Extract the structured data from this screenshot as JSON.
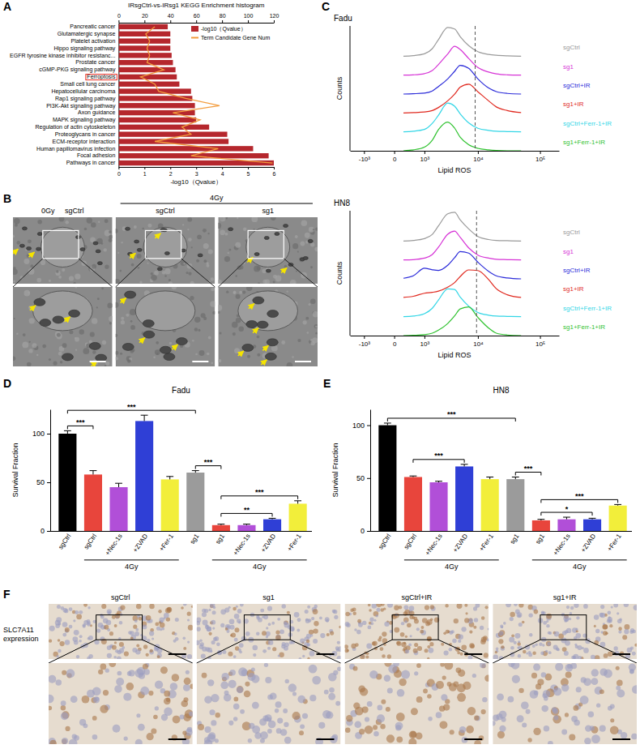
{
  "chart_data": [
    {
      "type": "bar",
      "panel": "A",
      "title": "IRsgCtrl-vs-IRsg1 KEGG Enrichment histogram",
      "orientation": "horizontal",
      "categories": [
        "Pancreatic cancer",
        "Glutamatergic synapse",
        "Platelet activation",
        "Hippo signaling pathway",
        "EGFR tyrosine kinase inhibitor resistanc...",
        "Prostate cancer",
        "cGMP-PKG signaling pathway",
        "Ferroptosis",
        "Small cell lung cancer",
        "Hepatocellular carcinoma",
        "Rap1 signaling pathway",
        "PI3K-Akt signaling pathway",
        "Axon guidance",
        "MAPK signaling pathway",
        "Regulation of actin cytoskeleton",
        "Proteoglycans in cancer",
        "ECM-receptor interaction",
        "Human papillomavirus infection",
        "Focal adhesion",
        "Pathways in cancer"
      ],
      "series": [
        {
          "name": "-log10（Qvalue）",
          "type": "bar",
          "color": "#b5272d",
          "values": [
            1.9,
            2.0,
            2.0,
            2.0,
            2.05,
            2.1,
            2.2,
            2.25,
            2.35,
            2.8,
            2.85,
            2.95,
            2.95,
            3.0,
            3.5,
            4.2,
            4.25,
            5.2,
            5.8,
            6.0
          ]
        },
        {
          "name": "Term Candidate Gene Num",
          "type": "line",
          "axis": "y2",
          "color": "#f39c3d",
          "values": [
            28,
            21,
            24,
            22,
            24,
            22,
            35,
            17,
            28,
            31,
            52,
            78,
            42,
            63,
            49,
            56,
            28,
            77,
            56,
            119
          ]
        }
      ],
      "ylabel": "-log10（Qvalue）",
      "ylim": [
        0,
        6
      ],
      "yticks": [
        0,
        1,
        2,
        3,
        4,
        5,
        6
      ],
      "y2lim": [
        0,
        120
      ],
      "y2ticks": [
        0,
        20,
        40,
        60,
        80,
        100,
        120
      ],
      "legend": "top right",
      "annotations": [
        {
          "type": "box",
          "category": "Ferroptosis",
          "color": "#e8281e"
        }
      ]
    },
    {
      "type": "line",
      "panel": "C",
      "title": "Fadu",
      "xlabel": "Lipid ROS",
      "ylabel": "Counts",
      "log": "x",
      "xlim": [
        -2000,
        200000
      ],
      "xticks": [
        {
          "value": -1000,
          "label": "-10³"
        },
        0,
        {
          "value": 1000,
          "label": "10³"
        },
        {
          "value": 10000,
          "label": "10⁴"
        },
        {
          "value": 100000,
          "label": "10⁵"
        }
      ],
      "ylim": [
        0,
        100
      ],
      "tick_labels": "x",
      "threshold": 9000,
      "x": [
        200,
        500,
        1000,
        1500,
        2000,
        3000,
        4000,
        5000,
        7000,
        10000,
        15000,
        20000,
        30000,
        50000
      ],
      "series": [
        {
          "name": "sgCtrl",
          "color": "#9a9a9a",
          "values": [
            0,
            2,
            8,
            25,
            55,
            95,
            90,
            65,
            35,
            15,
            6,
            3,
            1,
            0
          ]
        },
        {
          "name": "sg1",
          "color": "#d633d6",
          "values": [
            0,
            1,
            5,
            15,
            35,
            70,
            95,
            85,
            55,
            25,
            10,
            4,
            1,
            0
          ]
        },
        {
          "name": "sgCtrl+IR",
          "color": "#2b2bd9",
          "values": [
            0,
            1,
            3,
            10,
            25,
            50,
            75,
            95,
            85,
            50,
            20,
            8,
            2,
            0
          ]
        },
        {
          "name": "sg1+IR",
          "color": "#e0281e",
          "values": [
            0,
            1,
            3,
            8,
            18,
            40,
            62,
            85,
            95,
            70,
            40,
            20,
            8,
            1
          ]
        },
        {
          "name": "sgCtrl+Ferr-1+IR",
          "color": "#33d6e6",
          "values": [
            0,
            2,
            8,
            28,
            55,
            95,
            85,
            60,
            30,
            12,
            5,
            2,
            1,
            0
          ]
        },
        {
          "name": "sg1+Ferr-1+IR",
          "color": "#2fc22f",
          "values": [
            0,
            3,
            12,
            35,
            70,
            95,
            75,
            45,
            20,
            8,
            3,
            1,
            0,
            0
          ]
        }
      ]
    },
    {
      "type": "line",
      "title": "HN8",
      "xlabel": "Lipid ROS",
      "ylabel": "Counts",
      "log": "x",
      "xlim": [
        -2000,
        200000
      ],
      "xticks": [
        {
          "value": -1000,
          "label": "-10³"
        },
        0,
        {
          "value": 1000,
          "label": "10³"
        },
        {
          "value": 10000,
          "label": "10⁴"
        },
        {
          "value": 100000,
          "label": "10⁵"
        }
      ],
      "ylim": [
        0,
        100
      ],
      "tick_labels": "x",
      "threshold": 9500,
      "x": [
        200,
        500,
        1000,
        1500,
        2000,
        3000,
        4000,
        5000,
        7000,
        10000,
        15000,
        20000,
        30000,
        50000
      ],
      "series": [
        {
          "name": "sgCtrl",
          "color": "#9a9a9a",
          "values": [
            0,
            2,
            8,
            22,
            50,
            90,
            95,
            70,
            40,
            15,
            5,
            2,
            1,
            0
          ]
        },
        {
          "name": "sg1",
          "color": "#d633d6",
          "values": [
            0,
            1,
            6,
            18,
            42,
            85,
            95,
            75,
            40,
            16,
            6,
            2,
            1,
            0
          ]
        },
        {
          "name": "sgCtrl+IR",
          "color": "#2b2bd9",
          "values": [
            2,
            10,
            35,
            30,
            28,
            45,
            70,
            90,
            85,
            55,
            25,
            10,
            3,
            0
          ]
        },
        {
          "name": "sg1+IR",
          "color": "#e0281e",
          "values": [
            1,
            5,
            15,
            18,
            22,
            35,
            50,
            70,
            92,
            90,
            60,
            30,
            10,
            1
          ]
        },
        {
          "name": "sgCtrl+Ferr-1+IR",
          "color": "#33d6e6",
          "values": [
            0,
            2,
            10,
            28,
            55,
            92,
            90,
            65,
            35,
            14,
            5,
            2,
            1,
            0
          ]
        },
        {
          "name": "sg1+Ferr-1+IR",
          "color": "#2fc22f",
          "values": [
            0,
            1,
            3,
            8,
            18,
            40,
            65,
            88,
            95,
            60,
            25,
            8,
            2,
            0
          ]
        }
      ]
    },
    {
      "type": "bar",
      "panel": "D",
      "title": "Fadu",
      "ylabel": "Survival Fraction",
      "categories": [
        "sgCtrl",
        "sgCtrl",
        "+Nec-1s",
        "+ZVAD",
        "+Fer-1",
        "sg1",
        "sg1",
        "+Nec-1s",
        "+ZVAD",
        "+Fer-1"
      ],
      "values": [
        100,
        58,
        45,
        113,
        53,
        60,
        6,
        6,
        12,
        28
      ],
      "errors": [
        3,
        4,
        4,
        6,
        3,
        2,
        1,
        1,
        1,
        3
      ],
      "colors": [
        "#000000",
        "#e8453c",
        "#b14fd8",
        "#2f3fd6",
        "#f2ee3a",
        "#9b9b9b",
        "#e8453c",
        "#b14fd8",
        "#2f3fd6",
        "#f2ee3a"
      ],
      "ylim": [
        0,
        125
      ],
      "yticks": [
        0,
        50,
        100
      ],
      "groups": [
        {
          "label": "4Gy",
          "range": [
            1,
            4
          ]
        },
        {
          "label": "4Gy",
          "range": [
            6,
            9
          ]
        }
      ],
      "comparisons": [
        {
          "pair": [
            0,
            5
          ],
          "label": "***"
        },
        {
          "pair": [
            0,
            1
          ],
          "label": "***"
        },
        {
          "pair": [
            5,
            6
          ],
          "label": "***"
        },
        {
          "pair": [
            6,
            8
          ],
          "label": "**"
        },
        {
          "pair": [
            6,
            9
          ],
          "label": "***"
        }
      ]
    },
    {
      "type": "bar",
      "panel": "E",
      "title": "HN8",
      "ylabel": "Survival Fraction",
      "categories": [
        "sgCtrl",
        "sgCtrl",
        "+Nec-1s",
        "+ZVAD",
        "+Fer-1",
        "sg1",
        "sg1",
        "+Nec-1s",
        "+ZVAD",
        "+Fer-1"
      ],
      "values": [
        100,
        51,
        46,
        61,
        49,
        49,
        10,
        11,
        11,
        24
      ],
      "errors": [
        2,
        1,
        1,
        2,
        2,
        2,
        1,
        2,
        1,
        1
      ],
      "colors": [
        "#000000",
        "#e8453c",
        "#b14fd8",
        "#2f3fd6",
        "#f2ee3a",
        "#9b9b9b",
        "#e8453c",
        "#b14fd8",
        "#2f3fd6",
        "#f2ee3a"
      ],
      "ylim": [
        0,
        115
      ],
      "yticks": [
        0,
        50,
        100
      ],
      "groups": [
        {
          "label": "4Gy",
          "range": [
            1,
            4
          ]
        },
        {
          "label": "4Gy",
          "range": [
            6,
            9
          ]
        }
      ],
      "comparisons": [
        {
          "pair": [
            0,
            5
          ],
          "label": "***"
        },
        {
          "pair": [
            1,
            3
          ],
          "label": "***"
        },
        {
          "pair": [
            5,
            6
          ],
          "label": "***"
        },
        {
          "pair": [
            6,
            8
          ],
          "label": "*"
        },
        {
          "pair": [
            6,
            9
          ],
          "label": "***"
        }
      ]
    }
  ],
  "images": [
    {
      "panel": "B",
      "group": {
        "label": "4Gy",
        "columns": [
          1,
          2
        ]
      },
      "columns": [
        [
          "0Gy",
          "sgCtrl"
        ],
        [
          "sgCtrl"
        ],
        [
          "sg1"
        ]
      ]
    },
    {
      "panel": "F",
      "row_label": "SLC7A11 expression",
      "columns": [
        "sgCtrl",
        "sg1",
        "sgCtrl+IR",
        "sg1+IR"
      ]
    }
  ]
}
